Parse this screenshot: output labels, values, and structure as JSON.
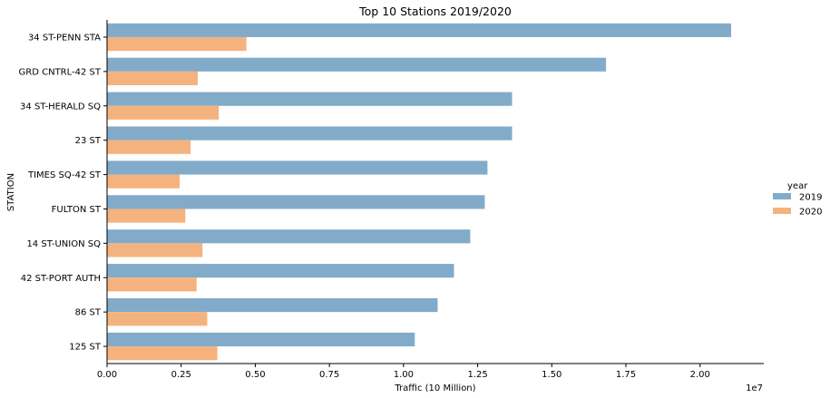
{
  "chart_data": {
    "type": "bar",
    "orientation": "horizontal",
    "title": "Top 10 Stations 2019/2020",
    "xlabel": "Traffic (10 Million)",
    "ylabel": "STATION",
    "x_offset_text": "1e7",
    "xlim": [
      0,
      22150000
    ],
    "xticks": [
      0,
      2500000,
      5000000,
      7500000,
      10000000,
      12500000,
      15000000,
      17500000,
      20000000
    ],
    "xtick_labels": [
      "0.00",
      "0.25",
      "0.50",
      "0.75",
      "1.00",
      "1.25",
      "1.50",
      "1.75",
      "2.00"
    ],
    "categories": [
      "34 ST-PENN STA",
      "GRD CNTRL-42 ST",
      "34 ST-HERALD SQ",
      "23 ST",
      "TIMES SQ-42 ST",
      "FULTON ST",
      "14 ST-UNION SQ",
      "42 ST-PORT AUTH",
      "86 ST",
      "125 ST"
    ],
    "legend_title": "year",
    "legend_position": "center-right",
    "grid": false,
    "series": [
      {
        "name": "2019",
        "color": "#82abc9",
        "values": [
          21050000,
          16830000,
          13660000,
          13660000,
          12830000,
          12740000,
          12250000,
          11700000,
          11150000,
          10380000
        ]
      },
      {
        "name": "2020",
        "color": "#f4b37e",
        "values": [
          4700000,
          3060000,
          3770000,
          2820000,
          2450000,
          2640000,
          3220000,
          3020000,
          3380000,
          3720000
        ]
      }
    ]
  }
}
